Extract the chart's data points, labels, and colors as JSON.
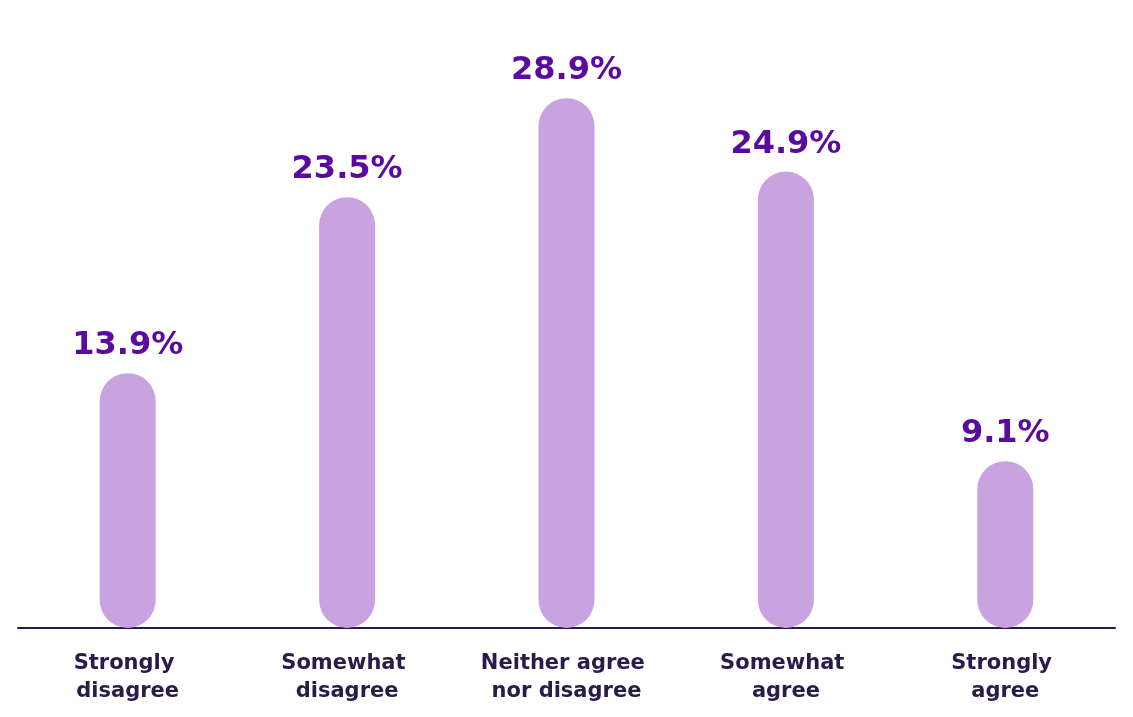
{
  "chart_data": {
    "type": "bar",
    "categories": [
      "Strongly disagree",
      "Somewhat disagree",
      "Neither agree nor disagree",
      "Somewhat agree",
      "Strongly agree"
    ],
    "values": [
      13.9,
      23.5,
      28.9,
      24.9,
      9.1
    ],
    "value_labels": [
      "13.9%",
      "23.5%",
      "28.9%",
      "24.9%",
      "9.1%"
    ],
    "color": "#c9a3df"
  }
}
